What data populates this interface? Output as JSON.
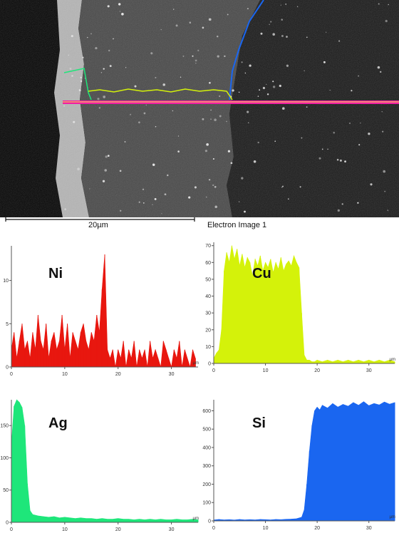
{
  "image_caption": "Electron Image 1",
  "scale_bar_label": "20µm",
  "chart_data": [
    {
      "type": "area",
      "element": "Ni",
      "color": "#e8170f",
      "xunit": "µm",
      "xlim": [
        0,
        35
      ],
      "ylim": [
        0,
        14
      ],
      "xticks": [
        0,
        10,
        20,
        30
      ],
      "yticks": [
        0,
        5,
        10
      ],
      "x": [
        0,
        0.5,
        1,
        1.5,
        2,
        2.5,
        3,
        3.5,
        4,
        4.5,
        5,
        5.5,
        6,
        6.5,
        7,
        7.5,
        8,
        8.5,
        9,
        9.5,
        10,
        10.5,
        11,
        11.5,
        12,
        12.5,
        13,
        13.5,
        14,
        14.5,
        15,
        15.5,
        16,
        16.5,
        17,
        17.5,
        18,
        18.5,
        19,
        19.5,
        20,
        20.5,
        21,
        21.5,
        22,
        22.5,
        23,
        23.5,
        24,
        24.5,
        25,
        25.5,
        26,
        26.5,
        27,
        27.5,
        28,
        28.5,
        29,
        29.5,
        30,
        30.5,
        31,
        31.5,
        32,
        32.5,
        33,
        33.5,
        34,
        34.5
      ],
      "values": [
        2,
        4,
        1,
        3,
        5,
        2,
        3,
        1,
        4,
        2,
        6,
        3,
        2,
        5,
        1,
        3,
        4,
        2,
        3,
        6,
        2,
        5,
        1,
        4,
        3,
        2,
        4,
        5,
        3,
        2,
        4,
        3,
        6,
        4,
        9,
        13,
        2,
        1,
        2,
        0,
        2,
        1,
        3,
        0,
        2,
        1,
        3,
        0,
        2,
        1,
        2,
        0,
        3,
        1,
        2,
        1,
        0,
        3,
        2,
        1,
        0,
        2,
        1,
        3,
        0,
        2,
        1,
        0,
        2,
        1
      ]
    },
    {
      "type": "area",
      "element": "Cu",
      "color": "#d4f20a",
      "xunit": "µm",
      "xlim": [
        0,
        35
      ],
      "ylim": [
        0,
        72
      ],
      "xticks": [
        0,
        10,
        20,
        30
      ],
      "yticks": [
        0,
        10,
        20,
        30,
        40,
        50,
        60,
        70
      ],
      "x": [
        0,
        0.5,
        1,
        1.5,
        2,
        2.5,
        3,
        3.5,
        4,
        4.5,
        5,
        5.5,
        6,
        6.5,
        7,
        7.5,
        8,
        8.5,
        9,
        9.5,
        10,
        10.5,
        11,
        11.5,
        12,
        12.5,
        13,
        13.5,
        14,
        14.5,
        15,
        15.5,
        16,
        16.5,
        17,
        17.5,
        18,
        18.5,
        19,
        19.5,
        20,
        21,
        22,
        23,
        24,
        25,
        26,
        27,
        28,
        29,
        30,
        31,
        32,
        33,
        34,
        35
      ],
      "values": [
        3,
        6,
        8,
        20,
        55,
        66,
        60,
        70,
        62,
        68,
        58,
        65,
        57,
        63,
        60,
        52,
        62,
        58,
        64,
        55,
        60,
        57,
        62,
        54,
        60,
        56,
        63,
        55,
        59,
        61,
        58,
        64,
        60,
        57,
        30,
        5,
        2,
        2,
        1,
        1,
        2,
        1,
        2,
        1,
        2,
        1,
        2,
        1,
        2,
        1,
        2,
        1,
        2,
        1,
        2,
        1
      ]
    },
    {
      "type": "area",
      "element": "Ag",
      "color": "#1ee67a",
      "xunit": "µm",
      "xlim": [
        0,
        35
      ],
      "ylim": [
        0,
        190
      ],
      "xticks": [
        0,
        10,
        20,
        30
      ],
      "yticks": [
        0,
        50,
        100,
        150
      ],
      "x": [
        0,
        0.5,
        1,
        1.5,
        2,
        2.5,
        3,
        3.5,
        4,
        5,
        6,
        7,
        8,
        9,
        10,
        11,
        12,
        13,
        14,
        15,
        16,
        17,
        18,
        19,
        20,
        21,
        22,
        23,
        24,
        25,
        26,
        27,
        28,
        29,
        30,
        31,
        32,
        33,
        34,
        35
      ],
      "values": [
        120,
        180,
        190,
        186,
        178,
        150,
        60,
        18,
        12,
        10,
        9,
        8,
        9,
        7,
        8,
        7,
        6,
        7,
        6,
        6,
        5,
        6,
        5,
        5,
        6,
        5,
        5,
        4,
        5,
        4,
        5,
        4,
        5,
        4,
        4,
        5,
        4,
        4,
        5,
        4
      ]
    },
    {
      "type": "area",
      "element": "Si",
      "color": "#1a66f0",
      "xunit": "µm",
      "xlim": [
        0,
        35
      ],
      "ylim": [
        0,
        660
      ],
      "xticks": [
        0,
        10,
        20,
        30
      ],
      "yticks": [
        0,
        100,
        200,
        300,
        400,
        500,
        600
      ],
      "x": [
        0,
        1,
        2,
        3,
        4,
        5,
        6,
        7,
        8,
        9,
        10,
        11,
        12,
        13,
        14,
        15,
        16,
        17,
        17.5,
        18,
        18.5,
        19,
        19.5,
        20,
        20.5,
        21,
        22,
        23,
        24,
        25,
        26,
        27,
        28,
        29,
        30,
        31,
        32,
        33,
        34,
        35
      ],
      "values": [
        5,
        8,
        6,
        7,
        5,
        8,
        6,
        7,
        6,
        8,
        7,
        6,
        8,
        7,
        9,
        10,
        12,
        20,
        60,
        200,
        380,
        520,
        600,
        620,
        605,
        630,
        615,
        640,
        620,
        635,
        625,
        645,
        630,
        650,
        628,
        640,
        632,
        648,
        636,
        645
      ]
    }
  ]
}
